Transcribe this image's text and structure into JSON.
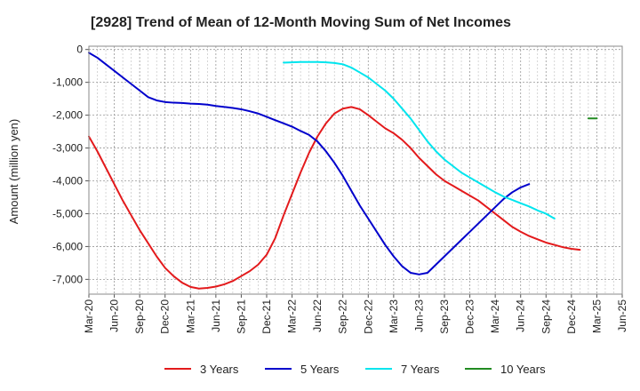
{
  "chart_data": {
    "type": "line",
    "title": "[2928]  Trend of Mean of 12-Month Moving Sum of Net Incomes",
    "xlabel": "",
    "ylabel": "Amount (million yen)",
    "ylim": [
      -7450,
      100
    ],
    "yticks": [
      0,
      -1000,
      -2000,
      -3000,
      -4000,
      -5000,
      -6000,
      -7000
    ],
    "ytick_labels": [
      "0",
      "-1,000",
      "-2,000",
      "-3,000",
      "-4,000",
      "-5,000",
      "-6,000",
      "-7,000"
    ],
    "x_tick_labels": [
      "Mar-20",
      "Jun-20",
      "Sep-20",
      "Dec-20",
      "Mar-21",
      "Jun-21",
      "Sep-21",
      "Dec-21",
      "Mar-22",
      "Jun-22",
      "Sep-22",
      "Dec-22",
      "Mar-23",
      "Jun-23",
      "Sep-23",
      "Dec-23",
      "Mar-24",
      "Jun-24",
      "Sep-24",
      "Dec-24",
      "Mar-25",
      "Jun-25"
    ],
    "x_range": [
      "2020-03",
      "2025-06"
    ],
    "grid": true,
    "legend_position": "bottom",
    "series": [
      {
        "name": "3 Years",
        "color": "#e31a1c",
        "start": "2020-03",
        "values": [
          -2650,
          -3100,
          -3600,
          -4100,
          -4600,
          -5050,
          -5500,
          -5900,
          -6300,
          -6650,
          -6900,
          -7100,
          -7230,
          -7280,
          -7260,
          -7220,
          -7150,
          -7050,
          -6900,
          -6750,
          -6550,
          -6250,
          -5750,
          -5050,
          -4400,
          -3750,
          -3150,
          -2650,
          -2250,
          -1950,
          -1800,
          -1750,
          -1820,
          -2000,
          -2200,
          -2400,
          -2550,
          -2750,
          -3000,
          -3300,
          -3550,
          -3800,
          -4000,
          -4150,
          -4300,
          -4450,
          -4600,
          -4800,
          -5000,
          -5200,
          -5400,
          -5550,
          -5680,
          -5780,
          -5880,
          -5950,
          -6020,
          -6070,
          -6100
        ]
      },
      {
        "name": "5 Years",
        "color": "#0000cc",
        "start": "2020-03",
        "values": [
          -100,
          -250,
          -450,
          -650,
          -850,
          -1050,
          -1250,
          -1450,
          -1550,
          -1600,
          -1620,
          -1630,
          -1650,
          -1660,
          -1680,
          -1720,
          -1750,
          -1780,
          -1820,
          -1880,
          -1950,
          -2050,
          -2150,
          -2250,
          -2350,
          -2480,
          -2600,
          -2800,
          -3100,
          -3450,
          -3850,
          -4300,
          -4750,
          -5150,
          -5550,
          -5950,
          -6300,
          -6600,
          -6800,
          -6850,
          -6800,
          -6550,
          -6300,
          -6050,
          -5800,
          -5550,
          -5300,
          -5050,
          -4800,
          -4550,
          -4350,
          -4200,
          -4100
        ]
      },
      {
        "name": "7 Years",
        "color": "#00e5ee",
        "start": "2022-02",
        "values": [
          -400,
          -390,
          -380,
          -380,
          -380,
          -390,
          -410,
          -450,
          -550,
          -700,
          -850,
          -1050,
          -1250,
          -1500,
          -1800,
          -2100,
          -2450,
          -2800,
          -3100,
          -3350,
          -3550,
          -3750,
          -3900,
          -4050,
          -4200,
          -4350,
          -4480,
          -4580,
          -4680,
          -4780,
          -4900,
          -5000,
          -5150
        ]
      },
      {
        "name": "10 Years",
        "color": "#228b22",
        "start": "2025-02",
        "values": [
          -2100,
          -2100
        ]
      }
    ]
  }
}
